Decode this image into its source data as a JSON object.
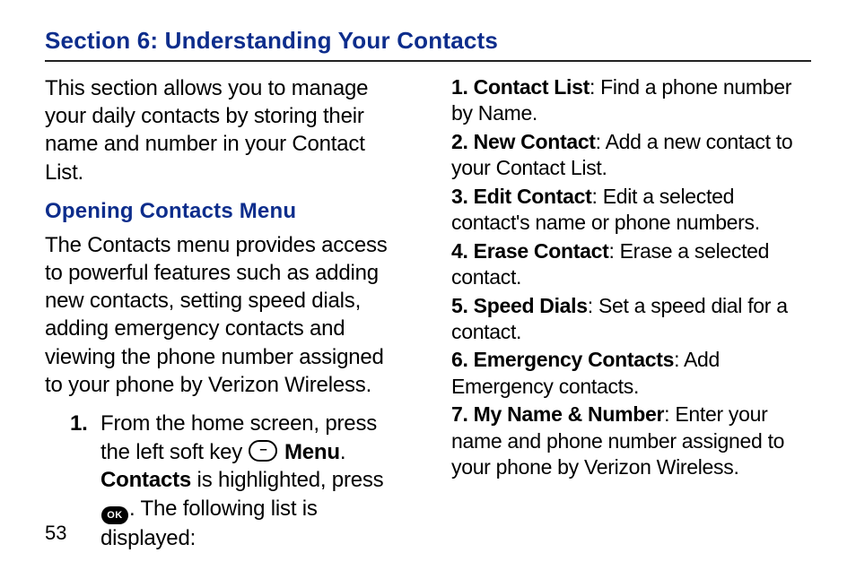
{
  "section_title": "Section 6: Understanding Your Contacts",
  "intro_text": "This section allows you to manage your daily contacts by storing their name and number in your Contact List.",
  "sub_heading": "Opening Contacts Menu",
  "opening_text": "The Contacts menu provides access to powerful features such as adding new contacts, setting speed dials, adding emergency contacts and viewing the phone number assigned to your phone by Verizon Wireless.",
  "step": {
    "num": "1.",
    "pre": "From the home screen, press the left soft key ",
    "menu_word": "Menu",
    "mid1": ". ",
    "contacts_word": "Contacts",
    "mid2": " is highlighted, press ",
    "ok_label": "OK",
    "post": ". The following list is displayed:"
  },
  "menu_items": [
    {
      "label": "1. Contact List",
      "desc": ": Find a phone number by Name."
    },
    {
      "label": "2. New Contact",
      "desc": ": Add a new contact to your Contact List."
    },
    {
      "label": "3. Edit Contact",
      "desc": ": Edit a selected contact's name or phone numbers."
    },
    {
      "label": "4. Erase Contact",
      "desc": ": Erase a selected contact."
    },
    {
      "label": "5. Speed Dials",
      "desc": ": Set a speed dial for a contact."
    },
    {
      "label": "6. Emergency Contacts",
      "desc": ": Add Emergency contacts."
    },
    {
      "label": "7. My Name & Number",
      "desc": ": Enter your name and phone number assigned to your phone by Verizon Wireless."
    }
  ],
  "page_number": "53",
  "colors": {
    "heading": "#0d2d8c",
    "text": "#000000",
    "rule": "#222222",
    "background": "#ffffff"
  }
}
